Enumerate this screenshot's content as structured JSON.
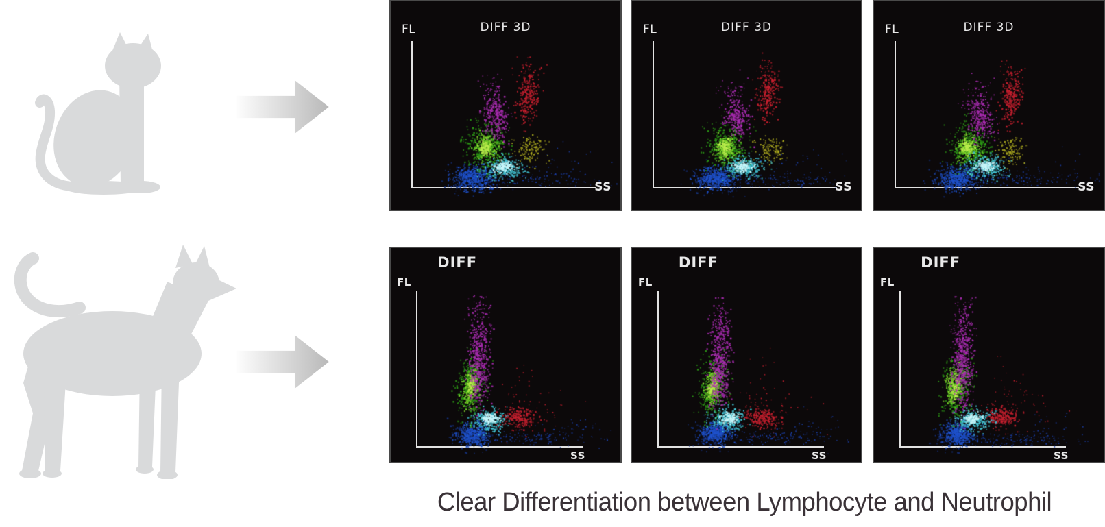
{
  "page": {
    "background": "#ffffff"
  },
  "left_column": {
    "cat_icon": "cat-silhouette",
    "dog_icon": "dog-silhouette",
    "arrow_icon": "right-arrow",
    "silhouette_color": "#d9dadb",
    "arrow_gradient": [
      "#fdfdfd",
      "#b9b9b9"
    ]
  },
  "panel_style": {
    "background": "#0c090a",
    "border": "#4a4a4a",
    "axis_color": "#e2e2e2",
    "label_color": "#e9e9e9"
  },
  "panels": [
    {
      "id": "cat-scattergram-1",
      "group": "cat",
      "title": "DIFF 3D",
      "fl_label": "FL",
      "ss_label": "SS",
      "cluster_set": "diff3d",
      "seed": 7
    },
    {
      "id": "cat-scattergram-2",
      "group": "cat",
      "title": "DIFF 3D",
      "fl_label": "FL",
      "ss_label": "SS",
      "cluster_set": "diff3d",
      "seed": 13
    },
    {
      "id": "cat-scattergram-3",
      "group": "cat",
      "title": "DIFF 3D",
      "fl_label": "FL",
      "ss_label": "SS",
      "cluster_set": "diff3d",
      "seed": 21
    },
    {
      "id": "dog-scattergram-1",
      "group": "dog",
      "title": "DIFF",
      "fl_label": "FL",
      "ss_label": "SS",
      "cluster_set": "diff",
      "seed": 31
    },
    {
      "id": "dog-scattergram-2",
      "group": "dog",
      "title": "DIFF",
      "fl_label": "FL",
      "ss_label": "SS",
      "cluster_set": "diff",
      "seed": 47
    },
    {
      "id": "dog-scattergram-3",
      "group": "dog",
      "title": "DIFF",
      "fl_label": "FL",
      "ss_label": "SS",
      "cluster_set": "diff",
      "seed": 59
    }
  ],
  "caption": {
    "text": "Clear Differentiation between Lymphocyte and Neutrophil",
    "color": "#3a3237"
  },
  "chart_data": {
    "type": "scatter",
    "xlabel": "SS",
    "ylabel": "FL",
    "titles": [
      "DIFF 3D",
      "DIFF"
    ],
    "grid": false,
    "legend": false,
    "description": "Six flow-cytometry WBC differential scattergrams (3 feline DIFF 3D, 3 canine DIFF). No numeric ticks shown; cluster positions are normalized to panel box (x rightward = SS, y downward from top = decreasing FL).",
    "cluster_sets": {
      "diff3d": {
        "clusters": [
          {
            "name": "blue-fringe",
            "color": "#15307a",
            "cx": 0.362,
            "cy": 0.848,
            "sx": 0.058,
            "sy": 0.034,
            "count": 220,
            "size": 2,
            "rot": 0
          },
          {
            "name": "blue-bottom-scatter",
            "color": "#1b3ea4",
            "cx": 0.62,
            "cy": 0.853,
            "sx": 0.14,
            "sy": 0.018,
            "count": 110,
            "size": 1.6,
            "rot": 0
          },
          {
            "name": "blue-sparse-right",
            "color": "#1b3ea4",
            "cx": 0.74,
            "cy": 0.8,
            "sx": 0.1,
            "sy": 0.05,
            "count": 30,
            "size": 1.5,
            "rot": 0
          },
          {
            "name": "lymphocyte-blue",
            "color": "#1f52cc",
            "cx": 0.362,
            "cy": 0.846,
            "sx": 0.042,
            "sy": 0.026,
            "count": 380,
            "size": 2,
            "rot": 0
          },
          {
            "name": "green-sparse-top",
            "color": "#2d9c16",
            "cx": 0.425,
            "cy": 0.605,
            "sx": 0.045,
            "sy": 0.04,
            "count": 35,
            "size": 1.5,
            "rot": 0
          },
          {
            "name": "green-outer",
            "color": "#2d9c16",
            "cx": 0.413,
            "cy": 0.706,
            "sx": 0.043,
            "sy": 0.05,
            "count": 360,
            "size": 2,
            "rot": 0.15
          },
          {
            "name": "green-mid",
            "color": "#7fd42c",
            "cx": 0.411,
            "cy": 0.701,
            "sx": 0.025,
            "sy": 0.03,
            "count": 200,
            "size": 2,
            "rot": 0.15
          },
          {
            "name": "green-core",
            "color": "#bcec4e",
            "cx": 0.409,
            "cy": 0.699,
            "sx": 0.013,
            "sy": 0.016,
            "count": 80,
            "size": 2,
            "rot": 0
          },
          {
            "name": "monocyte-magenta",
            "color": "#aa2cb2",
            "cx": 0.458,
            "cy": 0.555,
            "sx": 0.027,
            "sy": 0.056,
            "count": 260,
            "size": 2,
            "rot": -0.12
          },
          {
            "name": "magenta-sparse-top",
            "color": "#aa2cb2",
            "cx": 0.443,
            "cy": 0.445,
            "sx": 0.03,
            "sy": 0.045,
            "count": 45,
            "size": 1.5,
            "rot": 0
          },
          {
            "name": "eosinophil-yellow",
            "color": "#aaa81f",
            "cx": 0.601,
            "cy": 0.717,
            "sx": 0.031,
            "sy": 0.033,
            "count": 130,
            "size": 1.8,
            "rot": 0
          },
          {
            "name": "cyan-outer",
            "color": "#43c6d6",
            "cx": 0.49,
            "cy": 0.793,
            "sx": 0.043,
            "sy": 0.027,
            "count": 280,
            "size": 2,
            "rot": 0
          },
          {
            "name": "cyan-core",
            "color": "#c9f7fb",
            "cx": 0.49,
            "cy": 0.79,
            "sx": 0.021,
            "sy": 0.013,
            "count": 130,
            "size": 2,
            "rot": 0
          },
          {
            "name": "neutrophil-red",
            "color": "#c8202f",
            "cx": 0.593,
            "cy": 0.452,
            "sx": 0.023,
            "sy": 0.063,
            "count": 240,
            "size": 2,
            "rot": 0.12
          },
          {
            "name": "red-sparse-top",
            "color": "#c8202f",
            "cx": 0.582,
            "cy": 0.335,
            "sx": 0.022,
            "sy": 0.035,
            "count": 25,
            "size": 1.5,
            "rot": 0
          }
        ]
      },
      "diff": {
        "clusters": [
          {
            "name": "blue-fringe",
            "color": "#15307a",
            "cx": 0.358,
            "cy": 0.868,
            "sx": 0.045,
            "sy": 0.033,
            "count": 200,
            "size": 2,
            "rot": 0
          },
          {
            "name": "blue-bottom-scatter",
            "color": "#1b3ea4",
            "cx": 0.6,
            "cy": 0.886,
            "sx": 0.13,
            "sy": 0.016,
            "count": 120,
            "size": 1.6,
            "rot": 0
          },
          {
            "name": "blue-sparse-right",
            "color": "#1b3ea4",
            "cx": 0.79,
            "cy": 0.86,
            "sx": 0.08,
            "sy": 0.045,
            "count": 40,
            "size": 1.5,
            "rot": 0
          },
          {
            "name": "lymphocyte-blue",
            "color": "#1f52cc",
            "cx": 0.358,
            "cy": 0.866,
            "sx": 0.033,
            "sy": 0.026,
            "count": 340,
            "size": 2,
            "rot": 0
          },
          {
            "name": "green-outer",
            "color": "#2d9c16",
            "cx": 0.351,
            "cy": 0.65,
            "sx": 0.031,
            "sy": 0.07,
            "count": 360,
            "size": 2,
            "rot": 0.12
          },
          {
            "name": "green-mid",
            "color": "#7fd42c",
            "cx": 0.35,
            "cy": 0.647,
            "sx": 0.017,
            "sy": 0.044,
            "count": 200,
            "size": 2,
            "rot": 0.12
          },
          {
            "name": "green-core",
            "color": "#bcec4e",
            "cx": 0.349,
            "cy": 0.645,
            "sx": 0.009,
            "sy": 0.027,
            "count": 70,
            "size": 2,
            "rot": 0.12
          },
          {
            "name": "monocyte-magenta",
            "color": "#aa2cb2",
            "cx": 0.389,
            "cy": 0.535,
            "sx": 0.023,
            "sy": 0.118,
            "count": 500,
            "size": 2,
            "rot": 0.03
          },
          {
            "name": "magenta-sparse-top",
            "color": "#aa2cb2",
            "cx": 0.383,
            "cy": 0.335,
            "sx": 0.023,
            "sy": 0.05,
            "count": 60,
            "size": 1.5,
            "rot": 0
          },
          {
            "name": "red-halo",
            "color": "#c8202f",
            "cx": 0.605,
            "cy": 0.755,
            "sx": 0.095,
            "sy": 0.06,
            "count": 55,
            "size": 1.5,
            "rot": 0
          },
          {
            "name": "neutrophil-red",
            "color": "#c8202f",
            "cx": 0.552,
            "cy": 0.792,
            "sx": 0.036,
            "sy": 0.023,
            "count": 210,
            "size": 2,
            "rot": 0
          },
          {
            "name": "red-sparse-top",
            "color": "#c8202f",
            "cx": 0.578,
            "cy": 0.6,
            "sx": 0.03,
            "sy": 0.065,
            "count": 12,
            "size": 1.5,
            "rot": 0
          },
          {
            "name": "cyan-outer",
            "color": "#43c6d6",
            "cx": 0.425,
            "cy": 0.8,
            "sx": 0.037,
            "sy": 0.026,
            "count": 260,
            "size": 2,
            "rot": 0
          },
          {
            "name": "cyan-core",
            "color": "#c9f7fb",
            "cx": 0.425,
            "cy": 0.797,
            "sx": 0.018,
            "sy": 0.012,
            "count": 120,
            "size": 2,
            "rot": 0
          }
        ]
      }
    }
  }
}
